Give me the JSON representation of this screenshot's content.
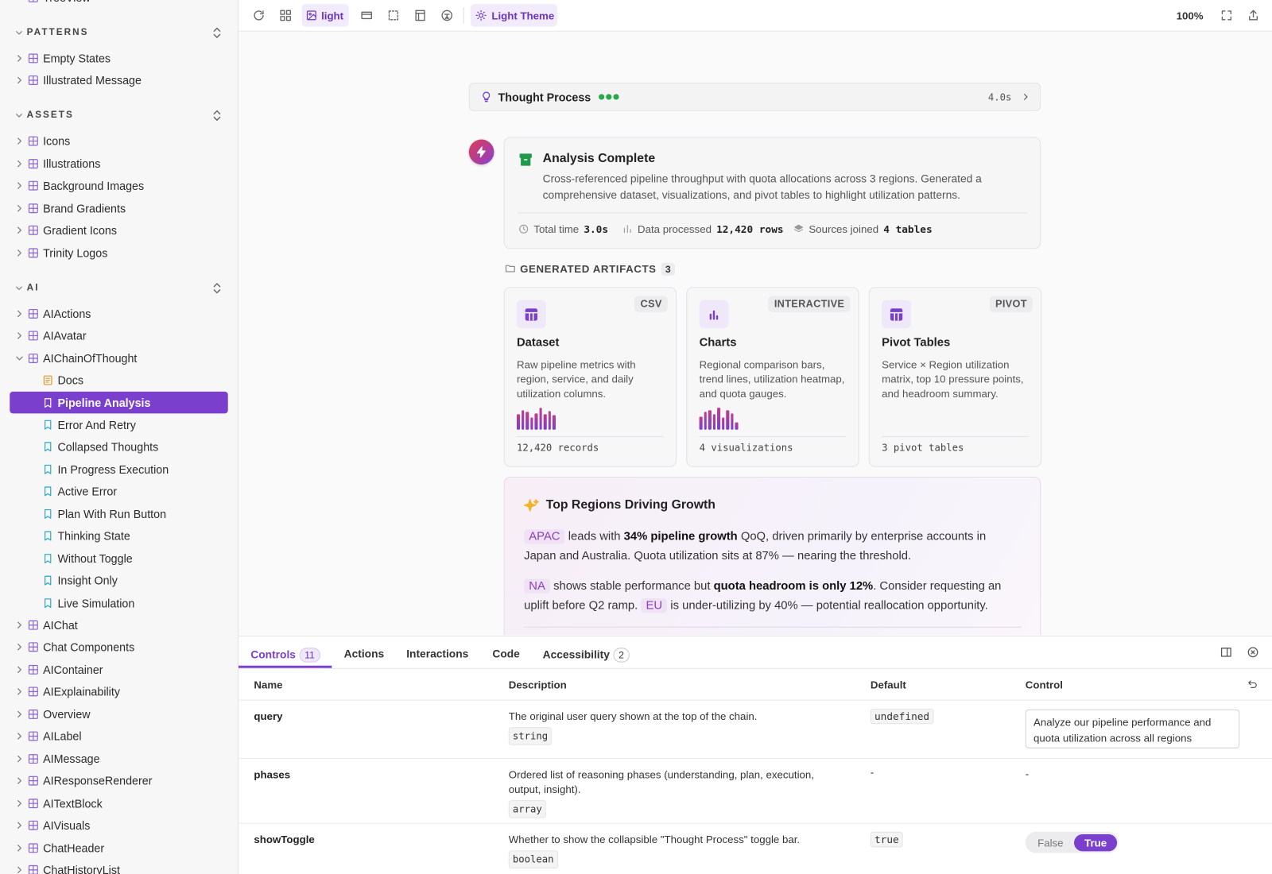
{
  "sidebar": {
    "top_item": "TreeView",
    "sections": [
      {
        "title": "PATTERNS",
        "items": [
          {
            "label": "Empty States",
            "kind": "component"
          },
          {
            "label": "Illustrated Message",
            "kind": "component"
          }
        ]
      },
      {
        "title": "ASSETS",
        "items": [
          {
            "label": "Icons",
            "kind": "component"
          },
          {
            "label": "Illustrations",
            "kind": "component"
          },
          {
            "label": "Background Images",
            "kind": "component"
          },
          {
            "label": "Brand Gradients",
            "kind": "component"
          },
          {
            "label": "Gradient Icons",
            "kind": "component"
          },
          {
            "label": "Trinity Logos",
            "kind": "component"
          }
        ]
      },
      {
        "title": "AI",
        "items": [
          {
            "label": "AIActions",
            "kind": "component"
          },
          {
            "label": "AIAvatar",
            "kind": "component"
          },
          {
            "label": "AIChainOfThought",
            "kind": "component",
            "expanded": true,
            "children": [
              {
                "label": "Docs",
                "kind": "docs"
              },
              {
                "label": "Pipeline Analysis",
                "kind": "story",
                "selected": true
              },
              {
                "label": "Error And Retry",
                "kind": "story"
              },
              {
                "label": "Collapsed Thoughts",
                "kind": "story"
              },
              {
                "label": "In Progress Execution",
                "kind": "story"
              },
              {
                "label": "Active Error",
                "kind": "story"
              },
              {
                "label": "Plan With Run Button",
                "kind": "story"
              },
              {
                "label": "Thinking State",
                "kind": "story"
              },
              {
                "label": "Without Toggle",
                "kind": "story"
              },
              {
                "label": "Insight Only",
                "kind": "story"
              },
              {
                "label": "Live Simulation",
                "kind": "story"
              }
            ]
          },
          {
            "label": "AIChat",
            "kind": "component"
          },
          {
            "label": "Chat Components",
            "kind": "component"
          },
          {
            "label": "AIContainer",
            "kind": "component"
          },
          {
            "label": "AIExplainability",
            "kind": "component"
          },
          {
            "label": "Overview",
            "kind": "component"
          },
          {
            "label": "AILabel",
            "kind": "component"
          },
          {
            "label": "AIMessage",
            "kind": "component"
          },
          {
            "label": "AIResponseRenderer",
            "kind": "component"
          },
          {
            "label": "AITextBlock",
            "kind": "component"
          },
          {
            "label": "AIVisuals",
            "kind": "component"
          },
          {
            "label": "ChatHeader",
            "kind": "component"
          },
          {
            "label": "ChatHistoryList",
            "kind": "component"
          }
        ]
      }
    ]
  },
  "toolbar": {
    "background_button": "light",
    "theme_button": "Light Theme",
    "zoom": "100%"
  },
  "preview": {
    "thought_bar": {
      "label": "Thought Process",
      "time": "4.0s"
    },
    "analysis": {
      "title": "Analysis Complete",
      "text": "Cross-referenced pipeline throughput with quota allocations across 3 regions. Generated a comprehensive dataset, visualizations, and pivot tables to highlight utilization patterns.",
      "stats": [
        {
          "label": "Total time",
          "value": "3.0s"
        },
        {
          "label": "Data processed",
          "value": "12,420 rows"
        },
        {
          "label": "Sources joined",
          "value": "4 tables"
        }
      ]
    },
    "artifacts": {
      "heading": "GENERATED ARTIFACTS",
      "count": 3,
      "cards": [
        {
          "icon": "table",
          "badge": "CSV",
          "title": "Dataset",
          "description": "Raw pipeline metrics with region, service, and daily utilization columns.",
          "footer": "12,420 records",
          "sparkline": true
        },
        {
          "icon": "chart",
          "badge": "INTERACTIVE",
          "title": "Charts",
          "description": "Regional comparison bars, trend lines, utilization heatmap, and quota gauges.",
          "footer": "4 visualizations",
          "sparkline": true
        },
        {
          "icon": "table",
          "badge": "PIVOT",
          "title": "Pivot Tables",
          "description": "Service × Region utilization matrix, top 10 pressure points, and headroom summary.",
          "footer": "3 pivot tables",
          "sparkline": false
        }
      ]
    },
    "insight": {
      "title": "Top Regions Driving Growth",
      "paragraphs": [
        [
          {
            "text": "APAC",
            "style": "tag"
          },
          {
            "text": " leads with ",
            "style": "plain"
          },
          {
            "text": "34% pipeline growth",
            "style": "bold"
          },
          {
            "text": " QoQ, driven primarily by enterprise accounts in Japan and Australia. Quota utilization sits at 87% — nearing the threshold.",
            "style": "plain"
          }
        ],
        [
          {
            "text": "NA",
            "style": "tag"
          },
          {
            "text": " shows stable performance but ",
            "style": "plain"
          },
          {
            "text": "quota headroom is only 12%",
            "style": "bold"
          },
          {
            "text": ". Consider requesting an uplift before Q2 ramp. ",
            "style": "plain"
          },
          {
            "text": "EU",
            "style": "tag"
          },
          {
            "text": " is under-utilizing by 40% — potential reallocation opportunity.",
            "style": "plain"
          }
        ]
      ]
    }
  },
  "panel": {
    "tabs": [
      {
        "label": "Controls",
        "count": 11,
        "active": true
      },
      {
        "label": "Actions"
      },
      {
        "label": "Interactions"
      },
      {
        "label": "Code"
      },
      {
        "label": "Accessibility",
        "count": 2
      }
    ],
    "table": {
      "headers": [
        "Name",
        "Description",
        "Default",
        "Control"
      ],
      "rows": [
        {
          "name": "query",
          "description": "The original user query shown at the top of the chain.",
          "type": "string",
          "default": "undefined",
          "control": {
            "kind": "textarea",
            "value": "Analyze our pipeline performance and quota utilization across all regions"
          }
        },
        {
          "name": "phases",
          "description": "Ordered list of reasoning phases (understanding, plan, execution, output, insight).",
          "type": "array",
          "default": "-",
          "control": {
            "kind": "text",
            "value": "-"
          }
        },
        {
          "name": "showToggle",
          "description": "Whether to show the collapsible \"Thought Process\" toggle bar.",
          "type": "boolean",
          "default": "true",
          "control": {
            "kind": "toggle",
            "options": [
              "False",
              "True"
            ],
            "selected": 1
          }
        }
      ]
    }
  }
}
